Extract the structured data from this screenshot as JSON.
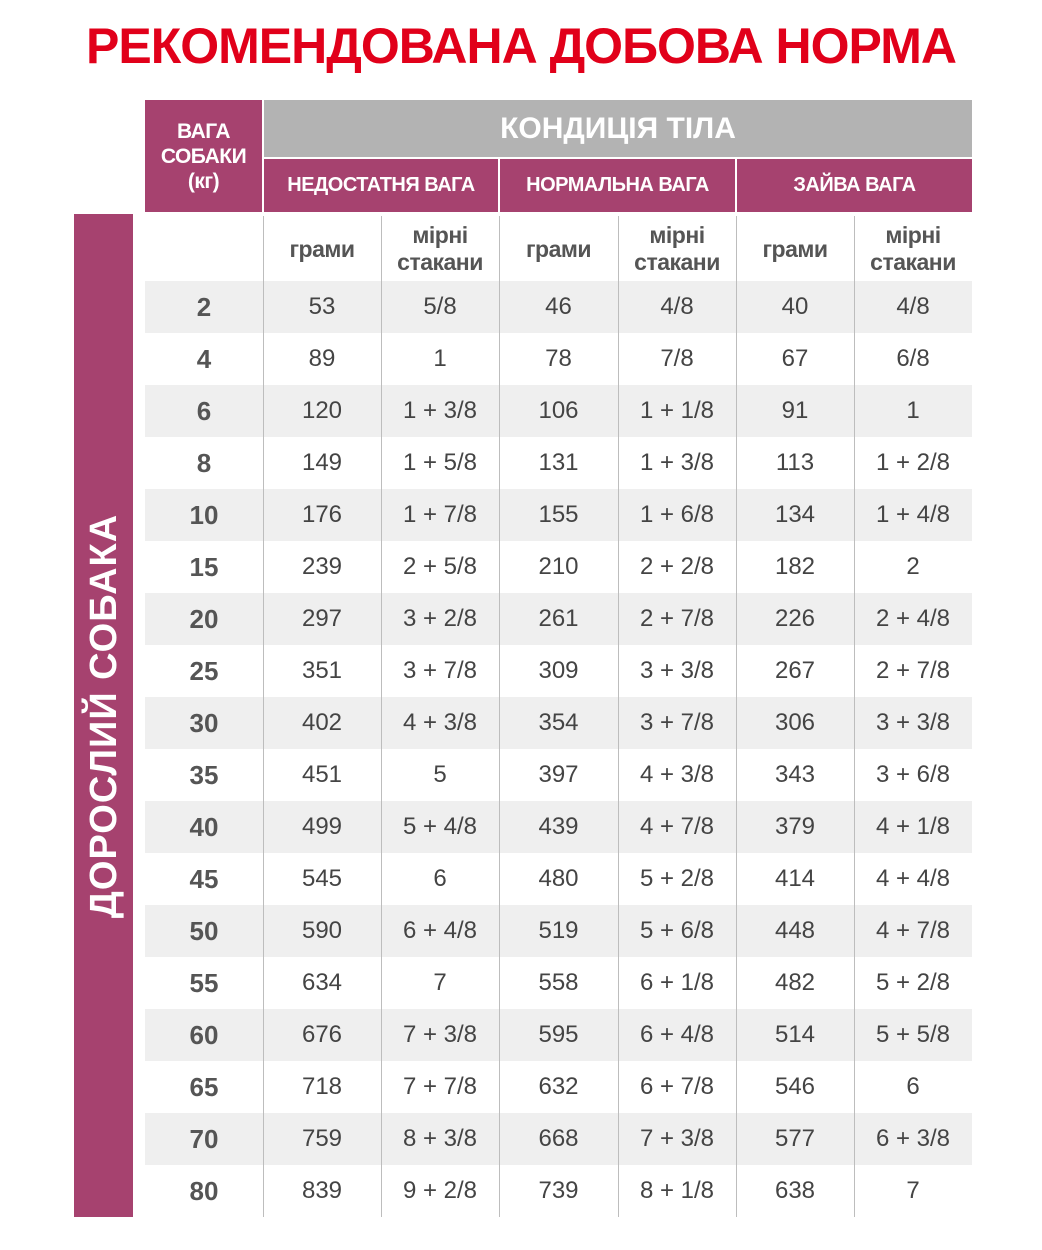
{
  "title": "РЕКОМЕНДОВАНА ДОБОВА НОРМА",
  "side_label": "ДОРОСЛИЙ СОБАКА",
  "header": {
    "weight": [
      "ВАГА",
      "СОБАКИ",
      "(кг)"
    ],
    "condition": "КОНДИЦІЯ ТІЛА",
    "groups": [
      "НЕДОСТАТНЯ ВАГА",
      "НОРМАЛЬНА ВАГА",
      "ЗАЙВА ВАГА"
    ],
    "grams": "грами",
    "cups": [
      "мірні",
      "стакани"
    ]
  },
  "colors": {
    "title": "#e1001a",
    "accent": "#a6426f",
    "condition": "#b3b3b3",
    "stripe": "#efefef"
  },
  "rows": [
    [
      "2",
      "53",
      "5/8",
      "46",
      "4/8",
      "40",
      "4/8"
    ],
    [
      "4",
      "89",
      "1",
      "78",
      "7/8",
      "67",
      "6/8"
    ],
    [
      "6",
      "120",
      "1 + 3/8",
      "106",
      "1 + 1/8",
      "91",
      "1"
    ],
    [
      "8",
      "149",
      "1 + 5/8",
      "131",
      "1 + 3/8",
      "113",
      "1 + 2/8"
    ],
    [
      "10",
      "176",
      "1 + 7/8",
      "155",
      "1 + 6/8",
      "134",
      "1 + 4/8"
    ],
    [
      "15",
      "239",
      "2 + 5/8",
      "210",
      "2 + 2/8",
      "182",
      "2"
    ],
    [
      "20",
      "297",
      "3 + 2/8",
      "261",
      "2 + 7/8",
      "226",
      "2 + 4/8"
    ],
    [
      "25",
      "351",
      "3 + 7/8",
      "309",
      "3 + 3/8",
      "267",
      "2 + 7/8"
    ],
    [
      "30",
      "402",
      "4 + 3/8",
      "354",
      "3 + 7/8",
      "306",
      "3 + 3/8"
    ],
    [
      "35",
      "451",
      "5",
      "397",
      "4 + 3/8",
      "343",
      "3 + 6/8"
    ],
    [
      "40",
      "499",
      "5 + 4/8",
      "439",
      "4 + 7/8",
      "379",
      "4 + 1/8"
    ],
    [
      "45",
      "545",
      "6",
      "480",
      "5 + 2/8",
      "414",
      "4 + 4/8"
    ],
    [
      "50",
      "590",
      "6 + 4/8",
      "519",
      "5 + 6/8",
      "448",
      "4 + 7/8"
    ],
    [
      "55",
      "634",
      "7",
      "558",
      "6 + 1/8",
      "482",
      "5 + 2/8"
    ],
    [
      "60",
      "676",
      "7 + 3/8",
      "595",
      "6 + 4/8",
      "514",
      "5 + 5/8"
    ],
    [
      "65",
      "718",
      "7 + 7/8",
      "632",
      "6 + 7/8",
      "546",
      "6"
    ],
    [
      "70",
      "759",
      "8 + 3/8",
      "668",
      "7 + 3/8",
      "577",
      "6 + 3/8"
    ],
    [
      "80",
      "839",
      "9 + 2/8",
      "739",
      "8 + 1/8",
      "638",
      "7"
    ]
  ]
}
